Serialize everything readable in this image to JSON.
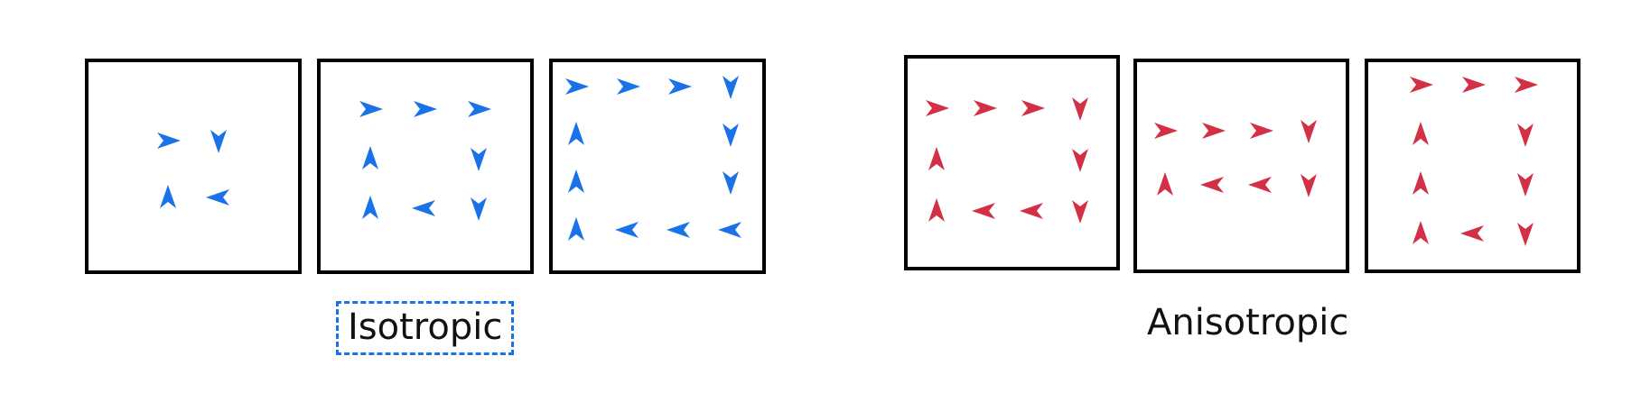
{
  "labels": {
    "isotropic": "Isotropic",
    "anisotropic": "Anisotropic"
  },
  "colors": {
    "isotropic_arrow": "#1a72e8",
    "anisotropic_arrow": "#d32f45",
    "box_border": "#000000",
    "highlight_border": "#1a72e8"
  },
  "groups": [
    {
      "name": "isotropic",
      "highlighted": true,
      "panels": [
        {
          "grid": [
            [
              "right",
              "down"
            ],
            [
              "up",
              "left"
            ]
          ]
        },
        {
          "grid": [
            [
              "right",
              "right",
              "right"
            ],
            [
              "up",
              "",
              "down"
            ],
            [
              "up",
              "left",
              "down"
            ]
          ]
        },
        {
          "grid": [
            [
              "right",
              "right",
              "right",
              "down"
            ],
            [
              "up",
              "",
              "",
              "down"
            ],
            [
              "up",
              "",
              "",
              "down"
            ],
            [
              "up",
              "left",
              "left",
              "left"
            ]
          ]
        }
      ]
    },
    {
      "name": "anisotropic",
      "highlighted": false,
      "panels": [
        {
          "grid": [
            [
              "right",
              "right",
              "right",
              "down"
            ],
            [
              "up",
              "",
              "",
              "down"
            ],
            [
              "up",
              "left",
              "left",
              "down"
            ]
          ]
        },
        {
          "grid": [
            [
              "right",
              "right",
              "right",
              "down"
            ],
            [
              "up",
              "left",
              "left",
              "down"
            ]
          ]
        },
        {
          "grid": [
            [
              "right",
              "right",
              "right"
            ],
            [
              "up",
              "",
              "down"
            ],
            [
              "up",
              "",
              "down"
            ],
            [
              "up",
              "left",
              "down"
            ]
          ]
        }
      ]
    }
  ]
}
